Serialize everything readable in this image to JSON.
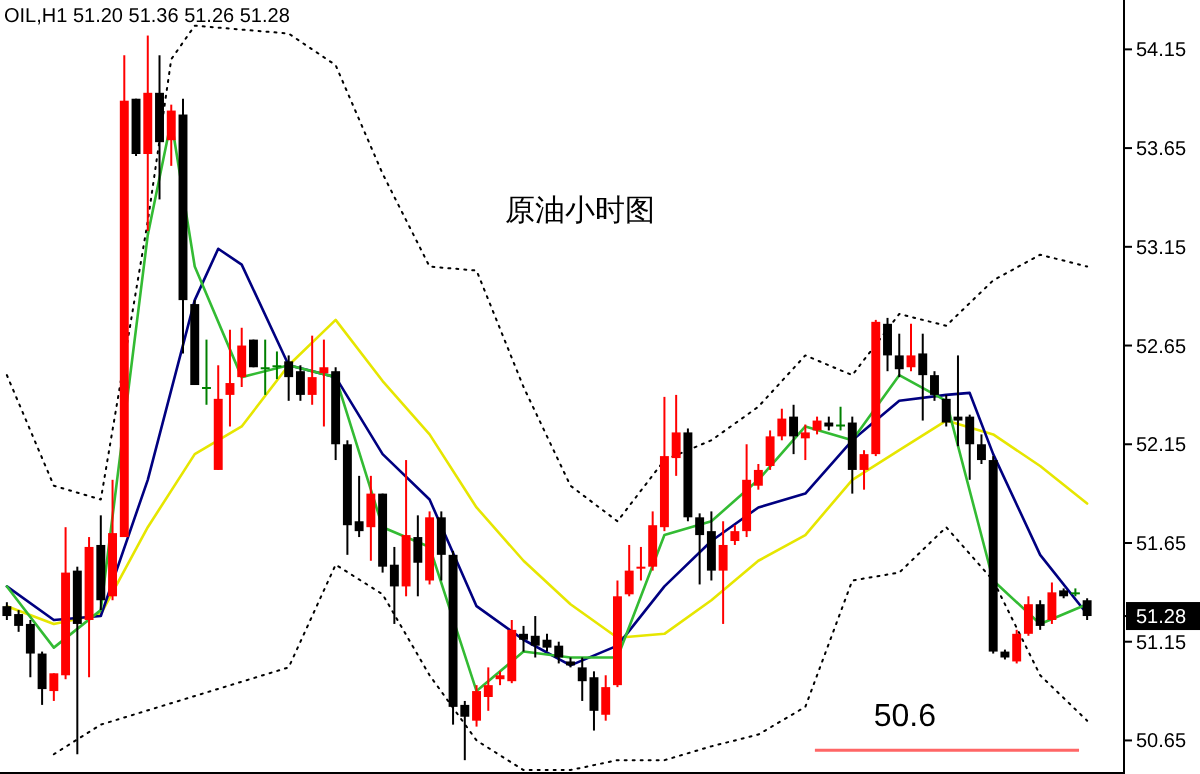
{
  "chart_data": {
    "type": "candlestick",
    "title": "原油小时图",
    "annotations": [
      "OIL,H1  51.20 51.36 51.26 51.28"
    ],
    "tick_labels": "y",
    "ylim": [
      50.48,
      54.4
    ],
    "yticks": [
      50.65,
      51.15,
      {
        "value": 51.28,
        "label": "51.28"
      },
      51.65,
      52.15,
      52.65,
      53.15,
      53.65,
      54.15
    ],
    "categories": [
      null,
      null,
      null,
      null,
      null,
      null,
      null,
      null,
      null,
      null,
      null,
      null,
      null,
      null,
      null,
      null,
      null,
      null,
      null,
      null,
      null,
      null,
      null,
      null,
      null,
      null,
      null,
      null,
      null,
      null,
      null,
      null,
      null,
      null,
      null,
      null,
      null,
      null,
      null,
      null,
      null,
      null,
      null,
      null,
      null,
      null,
      null,
      null,
      null,
      null,
      null,
      null,
      null,
      null,
      null,
      null,
      null,
      null,
      null,
      null,
      null,
      null,
      null,
      null,
      null,
      null,
      null,
      null,
      null,
      null,
      null,
      null,
      null,
      null,
      null,
      null,
      null,
      null,
      null,
      null,
      null,
      null,
      null,
      null,
      null,
      null,
      null,
      null,
      null,
      null,
      null,
      null,
      null
    ],
    "ohlc": [
      [
        51.33,
        51.35,
        51.26,
        51.28
      ],
      [
        51.29,
        51.31,
        51.2,
        51.23
      ],
      [
        51.24,
        51.26,
        50.97,
        51.09
      ],
      [
        51.09,
        51.1,
        50.83,
        50.91
      ],
      [
        50.9,
        50.99,
        50.85,
        50.99
      ],
      [
        50.98,
        51.73,
        50.96,
        51.5
      ],
      [
        51.51,
        51.53,
        50.58,
        51.24
      ],
      [
        51.26,
        51.68,
        50.97,
        51.63
      ],
      [
        51.64,
        51.79,
        51.31,
        51.36
      ],
      [
        51.38,
        51.97,
        51.36,
        51.7
      ],
      [
        51.68,
        54.12,
        51.68,
        53.89
      ],
      [
        53.9,
        53.9,
        53.61,
        53.62
      ],
      [
        53.62,
        54.22,
        53.23,
        53.93
      ],
      [
        53.93,
        54.12,
        53.39,
        53.68
      ],
      [
        53.69,
        53.87,
        53.56,
        53.84
      ],
      [
        53.82,
        53.9,
        52.61,
        52.88
      ],
      [
        52.86,
        52.88,
        52.45,
        52.45
      ],
      [
        52.44,
        52.68,
        52.35,
        52.44
      ],
      [
        52.02,
        52.55,
        52.02,
        52.38
      ],
      [
        52.4,
        52.73,
        52.24,
        52.46
      ],
      [
        52.49,
        52.74,
        52.44,
        52.65
      ],
      [
        52.68,
        52.68,
        52.54,
        52.54
      ],
      [
        52.54,
        52.68,
        52.4,
        52.54
      ],
      [
        52.55,
        52.62,
        52.48,
        52.55
      ],
      [
        52.57,
        52.6,
        52.37,
        52.49
      ],
      [
        52.52,
        52.55,
        52.37,
        52.4
      ],
      [
        52.4,
        52.7,
        52.35,
        52.49
      ],
      [
        52.51,
        52.68,
        52.24,
        52.54
      ],
      [
        52.52,
        52.54,
        52.07,
        52.15
      ],
      [
        52.15,
        52.17,
        51.59,
        51.74
      ],
      [
        51.76,
        51.99,
        51.68,
        51.71
      ],
      [
        51.73,
        51.99,
        51.56,
        51.9
      ],
      [
        51.9,
        51.9,
        51.5,
        51.53
      ],
      [
        51.54,
        51.63,
        51.24,
        51.43
      ],
      [
        51.43,
        52.07,
        51.38,
        51.69
      ],
      [
        51.68,
        51.79,
        51.38,
        51.55
      ],
      [
        51.46,
        51.81,
        51.44,
        51.78
      ],
      [
        51.78,
        51.81,
        51.46,
        51.59
      ],
      [
        51.59,
        51.61,
        50.73,
        50.82
      ],
      [
        50.83,
        50.85,
        50.55,
        50.77
      ],
      [
        50.75,
        50.93,
        50.72,
        50.9
      ],
      [
        50.87,
        51.02,
        50.8,
        50.93
      ],
      [
        50.96,
        51.0,
        50.93,
        50.98
      ],
      [
        50.95,
        51.26,
        50.94,
        51.21
      ],
      [
        51.19,
        51.23,
        51.1,
        51.16
      ],
      [
        51.18,
        51.28,
        51.07,
        51.13
      ],
      [
        51.16,
        51.19,
        51.1,
        51.12
      ],
      [
        51.13,
        51.15,
        51.04,
        51.07
      ],
      [
        51.05,
        51.07,
        51.02,
        51.03
      ],
      [
        51.02,
        51.07,
        50.85,
        50.95
      ],
      [
        50.97,
        51.0,
        50.7,
        50.8
      ],
      [
        50.78,
        50.98,
        50.75,
        50.92
      ],
      [
        50.93,
        51.46,
        50.92,
        51.38
      ],
      [
        51.39,
        51.64,
        51.38,
        51.51
      ],
      [
        51.52,
        51.63,
        51.46,
        51.53
      ],
      [
        51.53,
        51.81,
        51.51,
        51.74
      ],
      [
        51.73,
        52.39,
        51.71,
        52.09
      ],
      [
        52.08,
        52.4,
        51.99,
        52.21
      ],
      [
        52.21,
        52.23,
        51.76,
        51.78
      ],
      [
        51.78,
        51.8,
        51.44,
        51.69
      ],
      [
        51.71,
        51.81,
        51.46,
        51.51
      ],
      [
        51.51,
        51.76,
        51.24,
        51.64
      ],
      [
        51.66,
        51.74,
        51.64,
        51.71
      ],
      [
        51.71,
        52.15,
        51.68,
        51.97
      ],
      [
        51.94,
        52.05,
        51.92,
        52.02
      ],
      [
        52.04,
        52.22,
        52.02,
        52.19
      ],
      [
        52.19,
        52.33,
        52.17,
        52.28
      ],
      [
        52.29,
        52.35,
        52.1,
        52.19
      ],
      [
        52.18,
        52.25,
        52.07,
        52.21
      ],
      [
        52.22,
        52.29,
        52.2,
        52.27
      ],
      [
        52.26,
        52.29,
        52.22,
        52.24
      ],
      [
        52.25,
        52.34,
        52.22,
        52.25
      ],
      [
        52.26,
        52.29,
        51.9,
        52.02
      ],
      [
        52.02,
        52.12,
        51.92,
        52.1
      ],
      [
        52.1,
        52.78,
        52.09,
        52.77
      ],
      [
        52.76,
        52.79,
        52.52,
        52.6
      ],
      [
        52.6,
        52.71,
        52.49,
        52.53
      ],
      [
        52.54,
        52.76,
        52.52,
        52.6
      ],
      [
        52.61,
        52.71,
        52.27,
        52.5
      ],
      [
        52.5,
        52.52,
        52.37,
        52.4
      ],
      [
        52.38,
        52.4,
        52.24,
        52.26
      ],
      [
        52.29,
        52.6,
        52.14,
        52.27
      ],
      [
        52.29,
        52.3,
        51.97,
        52.15
      ],
      [
        52.15,
        52.2,
        52.05,
        52.07
      ],
      [
        52.07,
        52.09,
        51.09,
        51.1
      ],
      [
        51.1,
        51.11,
        51.06,
        51.07
      ],
      [
        51.05,
        51.21,
        51.04,
        51.19
      ],
      [
        51.19,
        51.38,
        51.18,
        51.34
      ],
      [
        51.34,
        51.36,
        51.21,
        51.23
      ],
      [
        51.26,
        51.45,
        51.24,
        51.4
      ],
      [
        51.41,
        51.42,
        51.37,
        51.38
      ],
      [
        51.4,
        51.42,
        51.38,
        51.4
      ],
      [
        51.36,
        51.37,
        51.26,
        51.28
      ]
    ],
    "colors": [
      "#000000",
      "#000000",
      "#000000",
      "#000000",
      "#ff0000",
      "#ff0000",
      "#000000",
      "#ff0000",
      "#000000",
      "#ff0000",
      "#ff0000",
      "#000000",
      "#ff0000",
      "#000000",
      "#ff0000",
      "#000000",
      "#000000",
      "#008000",
      "#ff0000",
      "#ff0000",
      "#ff0000",
      "#000000",
      "#008000",
      "#008000",
      "#000000",
      "#000000",
      "#ff0000",
      "#ff0000",
      "#000000",
      "#000000",
      "#000000",
      "#ff0000",
      "#000000",
      "#000000",
      "#ff0000",
      "#000000",
      "#ff0000",
      "#000000",
      "#000000",
      "#000000",
      "#ff0000",
      "#ff0000",
      "#ff0000",
      "#ff0000",
      "#000000",
      "#000000",
      "#000000",
      "#000000",
      "#000000",
      "#000000",
      "#000000",
      "#ff0000",
      "#ff0000",
      "#ff0000",
      "#ff0000",
      "#ff0000",
      "#ff0000",
      "#ff0000",
      "#000000",
      "#000000",
      "#000000",
      "#ff0000",
      "#ff0000",
      "#ff0000",
      "#ff0000",
      "#ff0000",
      "#ff0000",
      "#000000",
      "#ff0000",
      "#ff0000",
      "#000000",
      "#008000",
      "#000000",
      "#ff0000",
      "#ff0000",
      "#000000",
      "#000000",
      "#ff0000",
      "#000000",
      "#000000",
      "#000000",
      "#000000",
      "#000000",
      "#000000",
      "#000000",
      "#000000",
      "#ff0000",
      "#ff0000",
      "#000000",
      "#ff0000",
      "#000000",
      "#008000",
      "#000000"
    ],
    "series": [
      {
        "type": "line",
        "line_style": "dotted",
        "color": "#000000",
        "values": [
          52.5,
          null,
          null,
          null,
          51.94,
          null,
          null,
          null,
          51.87,
          null,
          null,
          null,
          53.28,
          null,
          54.1,
          null,
          54.27,
          null,
          null,
          null,
          null,
          null,
          null,
          null,
          54.23,
          null,
          null,
          null,
          54.07,
          null,
          null,
          null,
          53.52,
          null,
          null,
          null,
          53.05,
          null,
          null,
          null,
          53.03,
          null,
          null,
          null,
          52.44,
          null,
          null,
          null,
          51.94,
          null,
          null,
          null,
          51.76,
          null,
          null,
          null,
          52.07,
          null,
          null,
          null,
          52.17,
          null,
          null,
          null,
          52.34,
          null,
          null,
          null,
          52.6,
          null,
          null,
          null,
          52.5,
          null,
          null,
          null,
          52.81,
          null,
          null,
          null,
          52.75,
          null,
          null,
          null,
          52.98,
          null,
          null,
          null,
          53.11,
          null,
          null,
          null,
          53.05
        ]
      },
      {
        "type": "line",
        "line_style": "dotted",
        "color": "#000000",
        "values": [
          null,
          null,
          null,
          null,
          50.58,
          null,
          null,
          null,
          50.73,
          null,
          null,
          null,
          null,
          null,
          null,
          null,
          null,
          null,
          null,
          null,
          null,
          null,
          null,
          null,
          51.02,
          null,
          null,
          null,
          51.54,
          null,
          null,
          null,
          51.39,
          null,
          null,
          null,
          50.98,
          null,
          null,
          null,
          50.65,
          null,
          null,
          null,
          50.5,
          null,
          null,
          null,
          50.5,
          null,
          null,
          null,
          50.55,
          null,
          null,
          null,
          50.55,
          null,
          null,
          null,
          50.62,
          null,
          null,
          null,
          50.68,
          null,
          null,
          null,
          50.82,
          null,
          null,
          null,
          51.46,
          null,
          null,
          null,
          51.5,
          null,
          null,
          null,
          51.73,
          null,
          null,
          null,
          51.46,
          null,
          null,
          null,
          50.98,
          null,
          null,
          null,
          50.75
        ]
      },
      {
        "type": "line",
        "line_style": "solid",
        "color": "#e6e600",
        "values": [
          51.33,
          null,
          null,
          null,
          51.24,
          null,
          null,
          null,
          51.29,
          null,
          null,
          null,
          51.73,
          null,
          null,
          null,
          52.1,
          null,
          null,
          null,
          52.24,
          null,
          null,
          null,
          52.55,
          null,
          null,
          null,
          52.78,
          null,
          null,
          null,
          52.47,
          null,
          null,
          null,
          52.2,
          null,
          null,
          null,
          51.83,
          null,
          null,
          null,
          51.56,
          null,
          null,
          null,
          51.34,
          null,
          null,
          null,
          51.17,
          null,
          null,
          null,
          51.19,
          null,
          null,
          null,
          51.36,
          null,
          null,
          null,
          51.56,
          null,
          null,
          null,
          51.69,
          null,
          null,
          null,
          51.97,
          null,
          null,
          null,
          52.12,
          null,
          null,
          null,
          52.27,
          null,
          null,
          null,
          52.2,
          null,
          null,
          null,
          52.04,
          null,
          null,
          null,
          51.85
        ]
      },
      {
        "type": "line",
        "line_style": "solid",
        "color": "#000080",
        "values": [
          51.43,
          null,
          null,
          null,
          51.26,
          null,
          null,
          null,
          51.28,
          null,
          null,
          null,
          51.97,
          null,
          null,
          null,
          52.88,
          null,
          53.14,
          null,
          53.06,
          null,
          null,
          null,
          52.55,
          null,
          null,
          null,
          52.49,
          null,
          null,
          null,
          52.1,
          null,
          null,
          null,
          51.87,
          null,
          null,
          null,
          51.33,
          null,
          null,
          null,
          51.16,
          null,
          null,
          null,
          51.03,
          null,
          null,
          null,
          51.13,
          null,
          null,
          null,
          51.43,
          null,
          null,
          null,
          51.66,
          null,
          null,
          null,
          51.83,
          null,
          null,
          null,
          51.9,
          null,
          null,
          null,
          52.17,
          null,
          null,
          null,
          52.37,
          null,
          null,
          null,
          52.4,
          null,
          52.41,
          null,
          52.1,
          null,
          null,
          null,
          51.59,
          null,
          null,
          null,
          51.29
        ]
      },
      {
        "type": "line",
        "line_style": "solid",
        "color": "#33bb33",
        "values": [
          51.43,
          null,
          null,
          null,
          51.12,
          null,
          null,
          null,
          51.31,
          null,
          null,
          null,
          53.21,
          null,
          53.79,
          null,
          53.05,
          null,
          null,
          null,
          52.49,
          null,
          null,
          null,
          52.55,
          null,
          null,
          null,
          52.49,
          null,
          null,
          null,
          51.73,
          null,
          null,
          null,
          51.63,
          null,
          null,
          null,
          50.9,
          null,
          null,
          null,
          51.1,
          null,
          null,
          null,
          51.07,
          null,
          null,
          null,
          51.07,
          null,
          null,
          null,
          51.69,
          null,
          null,
          null,
          51.76,
          null,
          null,
          null,
          51.97,
          null,
          null,
          null,
          52.24,
          null,
          null,
          null,
          52.17,
          null,
          null,
          null,
          52.5,
          null,
          null,
          null,
          52.37,
          null,
          null,
          null,
          51.46,
          null,
          null,
          null,
          51.24,
          null,
          null,
          null,
          51.34
        ]
      }
    ],
    "ref_lines": [
      {
        "axis": "y",
        "value": 50.6,
        "label": "50.6",
        "color": "#ff6666"
      }
    ]
  }
}
